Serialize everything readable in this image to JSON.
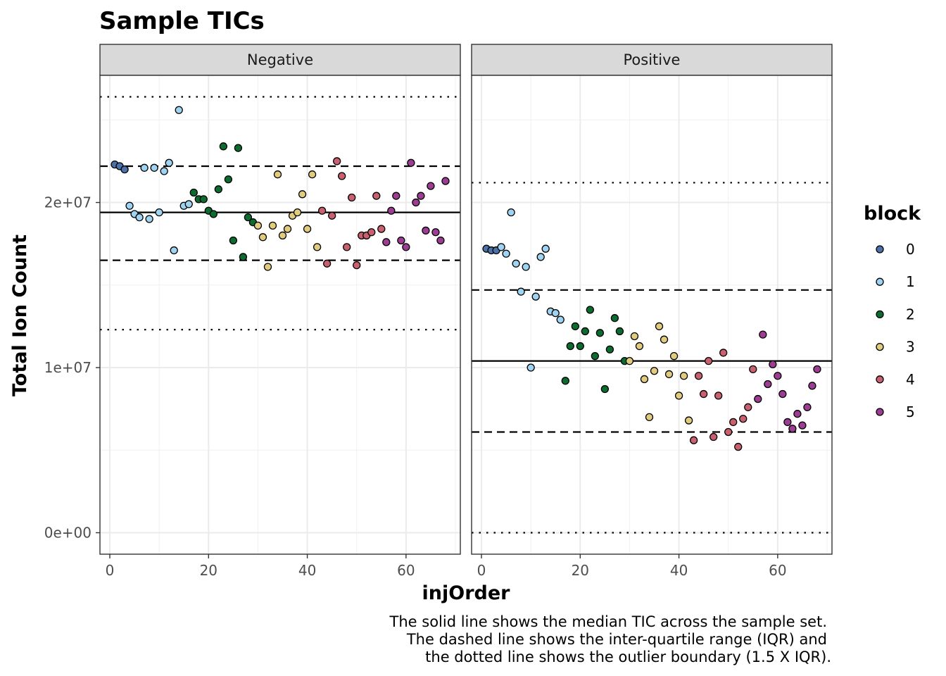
{
  "chart_data": {
    "type": "scatter",
    "title": "Sample TICs",
    "xlabel": "injOrder",
    "ylabel": "Total Ion Count",
    "xlim": [
      -2,
      71
    ],
    "ylim": [
      -1300000,
      27700000
    ],
    "x_ticks": [
      0,
      20,
      40,
      60
    ],
    "x_tick_labels": [
      "0",
      "20",
      "40",
      "60"
    ],
    "y_ticks": [
      0,
      10000000,
      20000000
    ],
    "y_tick_labels": [
      "0e+00",
      "1e+07",
      "2e+07"
    ],
    "grid": true,
    "legend": {
      "title": "block",
      "placement": "right",
      "entries": [
        {
          "label": "0",
          "color": "#4a72a8"
        },
        {
          "label": "1",
          "color": "#9fd3f2"
        },
        {
          "label": "2",
          "color": "#0c6b2f"
        },
        {
          "label": "3",
          "color": "#e1cc7e"
        },
        {
          "label": "4",
          "color": "#c96070"
        },
        {
          "label": "5",
          "color": "#9c3d93"
        }
      ]
    },
    "caption": [
      "The solid line shows the median TIC across the sample set.",
      "The dashed line shows the inter-quartile range (IQR) and",
      "the dotted line shows the outlier boundary (1.5 X IQR)."
    ],
    "panels": [
      {
        "name": "Negative",
        "median": 19400000,
        "iqr": [
          16500000,
          22200000
        ],
        "outlier_bounds": [
          12300000,
          26400000
        ],
        "points": [
          [
            1,
            22300000,
            0
          ],
          [
            2,
            22200000,
            0
          ],
          [
            3,
            22000000,
            0
          ],
          [
            4,
            19800000,
            1
          ],
          [
            5,
            19300000,
            1
          ],
          [
            6,
            19100000,
            1
          ],
          [
            7,
            22100000,
            1
          ],
          [
            8,
            19000000,
            1
          ],
          [
            9,
            22100000,
            1
          ],
          [
            10,
            19400000,
            1
          ],
          [
            11,
            21900000,
            1
          ],
          [
            12,
            22400000,
            1
          ],
          [
            13,
            17100000,
            1
          ],
          [
            14,
            25600000,
            1
          ],
          [
            15,
            19800000,
            1
          ],
          [
            16,
            19900000,
            1
          ],
          [
            17,
            20600000,
            2
          ],
          [
            18,
            20200000,
            2
          ],
          [
            19,
            20200000,
            2
          ],
          [
            20,
            19500000,
            2
          ],
          [
            21,
            19300000,
            2
          ],
          [
            22,
            20800000,
            2
          ],
          [
            23,
            23400000,
            2
          ],
          [
            24,
            21400000,
            2
          ],
          [
            25,
            17700000,
            2
          ],
          [
            26,
            23300000,
            2
          ],
          [
            27,
            16700000,
            2
          ],
          [
            28,
            19100000,
            2
          ],
          [
            29,
            18800000,
            2
          ],
          [
            30,
            18600000,
            3
          ],
          [
            31,
            17900000,
            3
          ],
          [
            32,
            16100000,
            3
          ],
          [
            33,
            18600000,
            3
          ],
          [
            34,
            21700000,
            3
          ],
          [
            35,
            18000000,
            3
          ],
          [
            36,
            18400000,
            3
          ],
          [
            37,
            19200000,
            3
          ],
          [
            38,
            19400000,
            3
          ],
          [
            39,
            20500000,
            3
          ],
          [
            40,
            18400000,
            3
          ],
          [
            41,
            21700000,
            3
          ],
          [
            42,
            17300000,
            3
          ],
          [
            43,
            19500000,
            4
          ],
          [
            44,
            16300000,
            4
          ],
          [
            45,
            19200000,
            4
          ],
          [
            46,
            22500000,
            4
          ],
          [
            47,
            21600000,
            4
          ],
          [
            48,
            17300000,
            4
          ],
          [
            49,
            20300000,
            4
          ],
          [
            50,
            16200000,
            4
          ],
          [
            51,
            18000000,
            4
          ],
          [
            52,
            18000000,
            4
          ],
          [
            53,
            18200000,
            4
          ],
          [
            54,
            20400000,
            4
          ],
          [
            55,
            18400000,
            4
          ],
          [
            56,
            17600000,
            5
          ],
          [
            57,
            19500000,
            5
          ],
          [
            58,
            20400000,
            5
          ],
          [
            59,
            17700000,
            5
          ],
          [
            60,
            17300000,
            5
          ],
          [
            61,
            22400000,
            5
          ],
          [
            62,
            20000000,
            5
          ],
          [
            63,
            20400000,
            5
          ],
          [
            64,
            18300000,
            5
          ],
          [
            65,
            21000000,
            5
          ],
          [
            66,
            18200000,
            5
          ],
          [
            67,
            17700000,
            5
          ],
          [
            68,
            21300000,
            5
          ]
        ]
      },
      {
        "name": "Positive",
        "median": 10400000,
        "iqr": [
          6100000,
          14700000
        ],
        "outlier_bounds": [
          0,
          21200000
        ],
        "points": [
          [
            1,
            17200000,
            0
          ],
          [
            2,
            17100000,
            0
          ],
          [
            3,
            17100000,
            0
          ],
          [
            4,
            17300000,
            1
          ],
          [
            5,
            16900000,
            1
          ],
          [
            6,
            19400000,
            1
          ],
          [
            7,
            16300000,
            1
          ],
          [
            8,
            14600000,
            1
          ],
          [
            9,
            16100000,
            1
          ],
          [
            10,
            10000000,
            1
          ],
          [
            11,
            14300000,
            1
          ],
          [
            12,
            16700000,
            1
          ],
          [
            13,
            17200000,
            1
          ],
          [
            14,
            13400000,
            1
          ],
          [
            15,
            13300000,
            1
          ],
          [
            16,
            12900000,
            1
          ],
          [
            17,
            9200000,
            2
          ],
          [
            18,
            11300000,
            2
          ],
          [
            19,
            12500000,
            2
          ],
          [
            20,
            11300000,
            2
          ],
          [
            21,
            12200000,
            2
          ],
          [
            22,
            13500000,
            2
          ],
          [
            23,
            10700000,
            2
          ],
          [
            24,
            12100000,
            2
          ],
          [
            25,
            8700000,
            2
          ],
          [
            26,
            11100000,
            2
          ],
          [
            27,
            13000000,
            2
          ],
          [
            28,
            12200000,
            2
          ],
          [
            29,
            10400000,
            2
          ],
          [
            30,
            10400000,
            3
          ],
          [
            31,
            11900000,
            3
          ],
          [
            32,
            11300000,
            3
          ],
          [
            33,
            9300000,
            3
          ],
          [
            34,
            7000000,
            3
          ],
          [
            35,
            9800000,
            3
          ],
          [
            36,
            12500000,
            3
          ],
          [
            37,
            11700000,
            3
          ],
          [
            38,
            9600000,
            3
          ],
          [
            39,
            10700000,
            3
          ],
          [
            40,
            8300000,
            3
          ],
          [
            41,
            9500000,
            3
          ],
          [
            42,
            6800000,
            3
          ],
          [
            43,
            5600000,
            4
          ],
          [
            44,
            9500000,
            4
          ],
          [
            45,
            8400000,
            4
          ],
          [
            46,
            10400000,
            4
          ],
          [
            47,
            5800000,
            4
          ],
          [
            48,
            8300000,
            4
          ],
          [
            49,
            10900000,
            4
          ],
          [
            50,
            6100000,
            4
          ],
          [
            51,
            6700000,
            4
          ],
          [
            52,
            5200000,
            4
          ],
          [
            53,
            6900000,
            4
          ],
          [
            54,
            7600000,
            4
          ],
          [
            55,
            9900000,
            4
          ],
          [
            56,
            8100000,
            5
          ],
          [
            57,
            12000000,
            5
          ],
          [
            58,
            9000000,
            5
          ],
          [
            59,
            10200000,
            5
          ],
          [
            60,
            9500000,
            5
          ],
          [
            61,
            8400000,
            5
          ],
          [
            62,
            6700000,
            5
          ],
          [
            63,
            6300000,
            5
          ],
          [
            64,
            7200000,
            5
          ],
          [
            65,
            6500000,
            5
          ],
          [
            66,
            7600000,
            5
          ],
          [
            67,
            8900000,
            5
          ],
          [
            68,
            9900000,
            5
          ]
        ]
      }
    ]
  }
}
